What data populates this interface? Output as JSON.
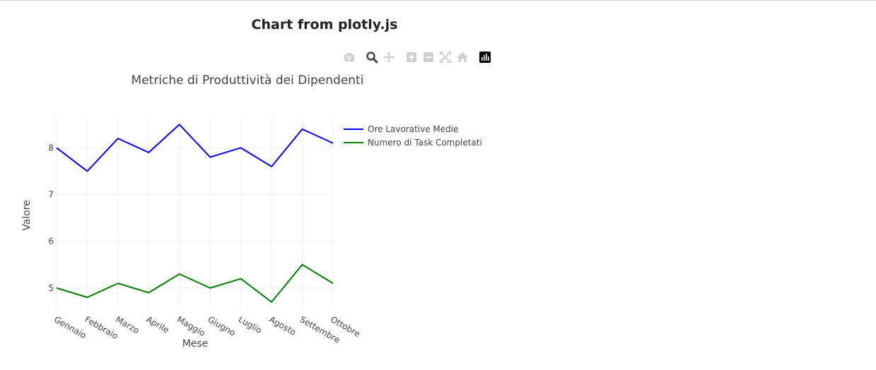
{
  "page": {
    "title": "Chart from plotly.js"
  },
  "modebar": {
    "buttons": [
      {
        "name": "camera-icon"
      },
      {
        "name": "zoom-icon",
        "active": true
      },
      {
        "name": "pan-icon"
      },
      {
        "name": "zoom-in-icon"
      },
      {
        "name": "zoom-out-icon"
      },
      {
        "name": "autoscale-icon"
      },
      {
        "name": "home-icon"
      },
      {
        "name": "plotly-logo-icon"
      }
    ]
  },
  "chart_data": {
    "type": "line",
    "title": "Metriche di Produttività dei Dipendenti",
    "xlabel": "Mese",
    "ylabel": "Valore",
    "categories": [
      "Gennaio",
      "Febbraio",
      "Marzo",
      "Aprile",
      "Maggio",
      "Giugno",
      "Luglio",
      "Agosto",
      "Settembre",
      "Ottobre"
    ],
    "series": [
      {
        "name": "Ore Lavorative Medie",
        "color": "#0000ff",
        "values": [
          8.0,
          7.5,
          8.2,
          7.9,
          8.5,
          7.8,
          8.0,
          7.6,
          8.4,
          8.1
        ]
      },
      {
        "name": "Numero di Task Completati",
        "color": "#008000",
        "values": [
          5.0,
          4.8,
          5.1,
          4.9,
          5.3,
          5.0,
          5.2,
          4.7,
          5.5,
          5.1
        ]
      }
    ],
    "yticks": [
      5,
      6,
      7,
      8
    ],
    "ylim": [
      4.56,
      8.64
    ],
    "grid": true,
    "legend": "top-right"
  }
}
